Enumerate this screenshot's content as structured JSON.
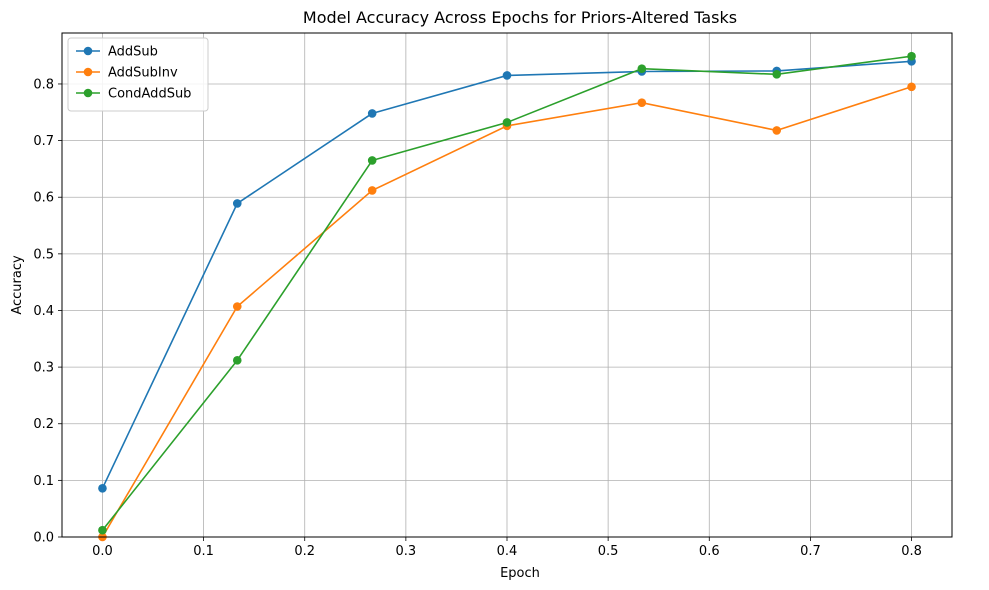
{
  "chart_data": {
    "type": "line",
    "title": "Model Accuracy Across Epochs for Priors-Altered Tasks",
    "xlabel": "Epoch",
    "ylabel": "Accuracy",
    "x": [
      0.0,
      0.1333,
      0.2667,
      0.4,
      0.5333,
      0.6667,
      0.8
    ],
    "xlim": [
      -0.04,
      0.84
    ],
    "ylim": [
      0.0,
      0.89
    ],
    "xticks": [
      "0.0",
      "0.1",
      "0.2",
      "0.3",
      "0.4",
      "0.5",
      "0.6",
      "0.7",
      "0.8"
    ],
    "yticks": [
      "0.0",
      "0.1",
      "0.2",
      "0.3",
      "0.4",
      "0.5",
      "0.6",
      "0.7",
      "0.8"
    ],
    "grid": true,
    "legend_position": "top-left",
    "series": [
      {
        "name": "AddSub",
        "color": "#1f77b4",
        "values": [
          0.086,
          0.589,
          0.748,
          0.815,
          0.822,
          0.823,
          0.84
        ]
      },
      {
        "name": "AddSubInv",
        "color": "#ff7f0e",
        "values": [
          0.0,
          0.407,
          0.612,
          0.726,
          0.767,
          0.718,
          0.795
        ]
      },
      {
        "name": "CondAddSub",
        "color": "#2ca02c",
        "values": [
          0.012,
          0.312,
          0.665,
          0.732,
          0.827,
          0.817,
          0.849
        ]
      }
    ]
  }
}
